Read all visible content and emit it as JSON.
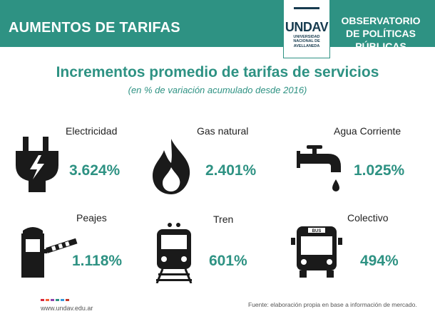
{
  "header": {
    "left_title": "AUMENTOS DE TARIFAS",
    "right_title": "OBSERVATORIO DE POLÍTICAS PÚBLICAS",
    "logo": {
      "brand": "UNDAV",
      "lines": [
        "UNIVERSIDAD",
        "NACIONAL DE",
        "AVELLANEDA"
      ]
    }
  },
  "main": {
    "title": "Incrementos promedio de tarifas de servicios",
    "subtitle": "(en % de variación acumulado desde 2016)",
    "services": [
      {
        "label": "Electricidad",
        "value": "3.624%",
        "icon": "electric-plug-icon"
      },
      {
        "label": "Gas natural",
        "value": "2.401%",
        "icon": "flame-icon"
      },
      {
        "label": "Agua Corriente",
        "value": "1.025%",
        "icon": "water-faucet-icon"
      },
      {
        "label": "Peajes",
        "value": "1.118%",
        "icon": "toll-booth-icon"
      },
      {
        "label": "Tren",
        "value": "601%",
        "icon": "train-icon"
      },
      {
        "label": "Colectivo",
        "value": "494%",
        "icon": "bus-icon"
      }
    ]
  },
  "footer": {
    "website": "www.undav.edu.ar",
    "source": "Fuente: elaboración propia en base a información de mercado."
  },
  "colors": {
    "accent": "#2e9283",
    "icon": "#1a1a1a",
    "logo": "#173b4f"
  }
}
